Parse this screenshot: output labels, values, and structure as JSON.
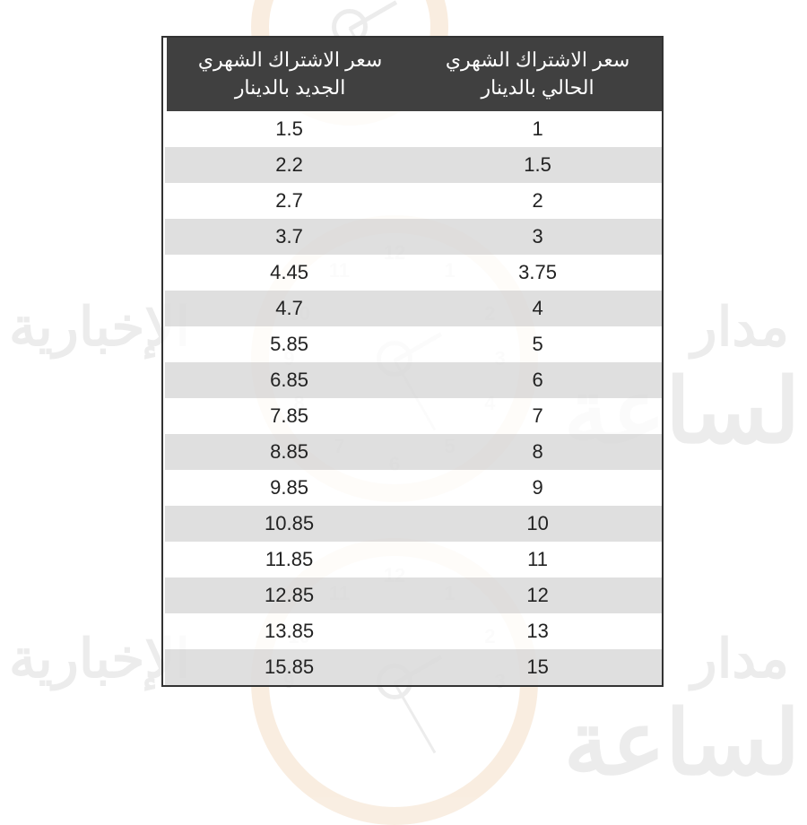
{
  "table": {
    "type": "table",
    "columns": [
      "سعر الاشتراك الشهري الجديد بالدينار",
      "سعر الاشتراك الشهري الحالي بالدينار"
    ],
    "header_bg": "#404040",
    "header_text_color": "#ffffff",
    "header_fontsize": 22,
    "header_divider_color": "#ffffff",
    "border_color": "#333333",
    "odd_row_bg": "#ffffff",
    "even_row_bg": "#d2d2d2",
    "cell_fontsize": 22,
    "cell_text_color": "#222222",
    "rows": [
      [
        "1.5",
        "1"
      ],
      [
        "2.2",
        "1.5"
      ],
      [
        "2.7",
        "2"
      ],
      [
        "3.7",
        "3"
      ],
      [
        "4.45",
        "3.75"
      ],
      [
        "4.7",
        "4"
      ],
      [
        "5.85",
        "5"
      ],
      [
        "6.85",
        "6"
      ],
      [
        "7.85",
        "7"
      ],
      [
        "8.85",
        "8"
      ],
      [
        "9.85",
        "9"
      ],
      [
        "10.85",
        "10"
      ],
      [
        "11.85",
        "11"
      ],
      [
        "12.85",
        "12"
      ],
      [
        "13.85",
        "13"
      ],
      [
        "15.85",
        "15"
      ]
    ]
  },
  "watermark": {
    "clock_ring_color": "#d88c3a",
    "clock_face_color": "#888888",
    "opacity": 0.15,
    "text_right": "مدار",
    "text_large": "الساعة",
    "text_left": "الإخبارية",
    "clock_numbers": [
      "12",
      "1",
      "2",
      "3",
      "4",
      "5",
      "6",
      "7",
      "8",
      "9",
      "10",
      "11"
    ]
  }
}
